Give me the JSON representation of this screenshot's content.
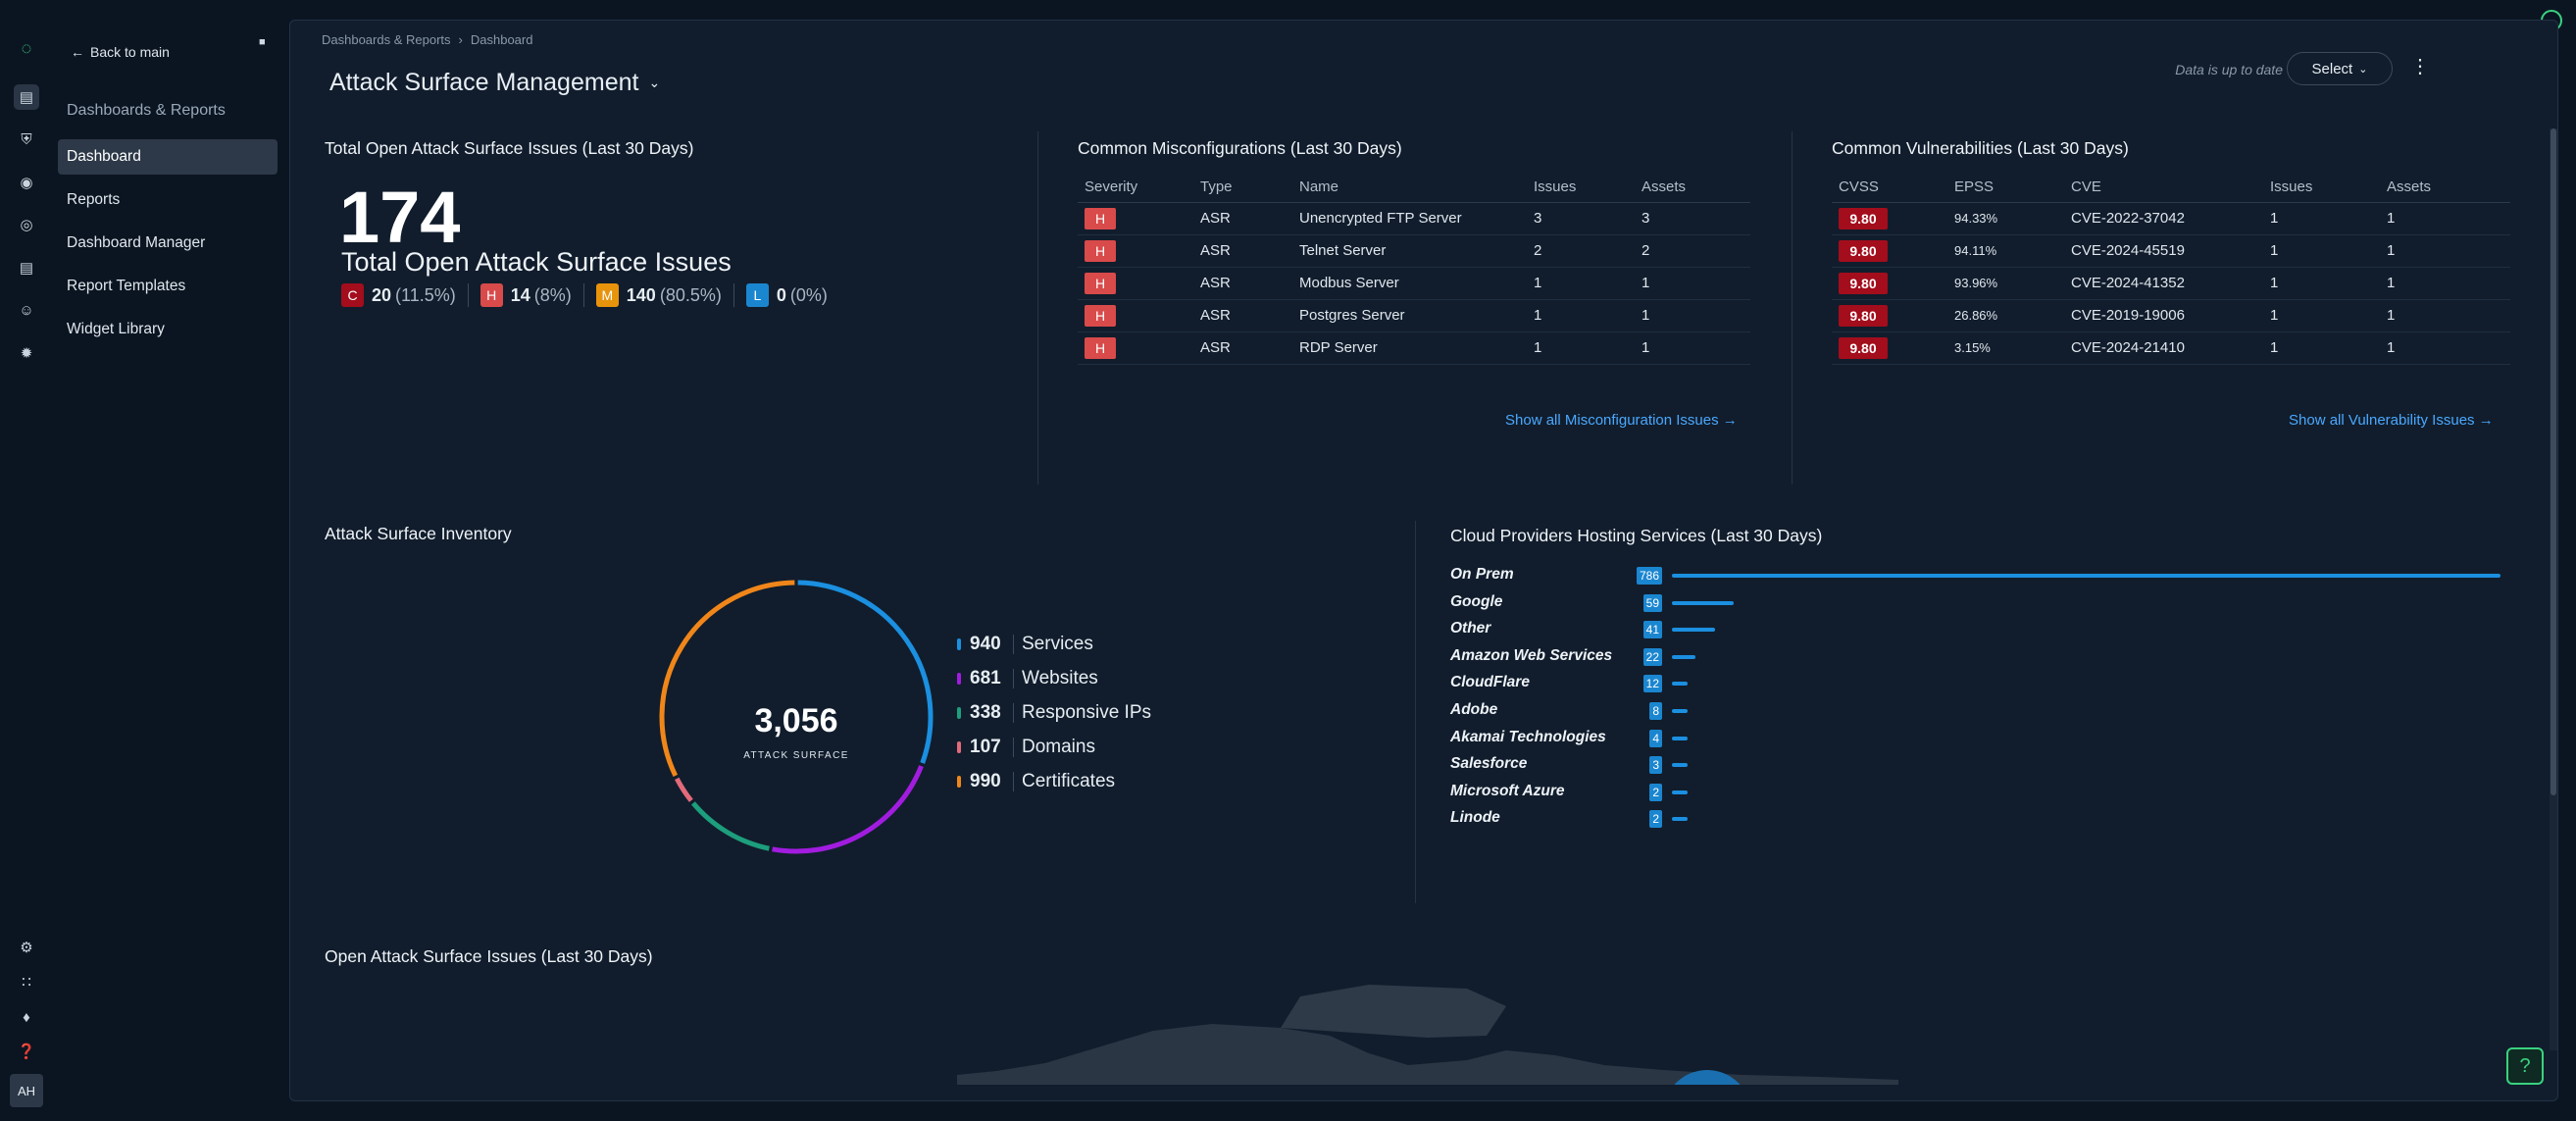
{
  "sidebar": {
    "back_label": "Back to main",
    "section_label": "Dashboards & Reports",
    "items": [
      {
        "label": "Dashboard"
      },
      {
        "label": "Reports"
      },
      {
        "label": "Dashboard Manager"
      },
      {
        "label": "Report Templates"
      },
      {
        "label": "Widget Library"
      }
    ],
    "avatar": "AH"
  },
  "header": {
    "breadcrumb": [
      "Dashboards & Reports",
      "Dashboard"
    ],
    "title": "Attack Surface Management",
    "status": "Data is up to date",
    "select_label": "Select"
  },
  "total_issues": {
    "title": "Total Open Attack Surface Issues (Last 30 Days)",
    "count": "174",
    "subtitle": "Total Open Attack Surface Issues",
    "severities": [
      {
        "letter": "C",
        "count": "20",
        "pct": "(11.5%)",
        "color": "#a30d1c"
      },
      {
        "letter": "H",
        "count": "14",
        "pct": "(8%)",
        "color": "#d94a4a"
      },
      {
        "letter": "M",
        "count": "140",
        "pct": "(80.5%)",
        "color": "#e8930c"
      },
      {
        "letter": "L",
        "count": "0",
        "pct": "(0%)",
        "color": "#1b86d0"
      }
    ]
  },
  "misconfig": {
    "title": "Common Misconfigurations (Last 30 Days)",
    "headers": [
      "Severity",
      "Type",
      "Name",
      "Issues",
      "Assets"
    ],
    "rows": [
      {
        "sev": "H",
        "type": "ASR",
        "name": "Unencrypted FTP Server",
        "issues": "3",
        "assets": "3"
      },
      {
        "sev": "H",
        "type": "ASR",
        "name": "Telnet Server",
        "issues": "2",
        "assets": "2"
      },
      {
        "sev": "H",
        "type": "ASR",
        "name": "Modbus Server",
        "issues": "1",
        "assets": "1"
      },
      {
        "sev": "H",
        "type": "ASR",
        "name": "Postgres Server",
        "issues": "1",
        "assets": "1"
      },
      {
        "sev": "H",
        "type": "ASR",
        "name": "RDP Server",
        "issues": "1",
        "assets": "1"
      }
    ],
    "link": "Show all Misconfiguration Issues →"
  },
  "vulns": {
    "title": "Common Vulnerabilities (Last 30 Days)",
    "headers": [
      "CVSS",
      "EPSS",
      "CVE",
      "Issues",
      "Assets"
    ],
    "rows": [
      {
        "cvss": "9.80",
        "epss": "94.33%",
        "cve": "CVE-2022-37042",
        "issues": "1",
        "assets": "1"
      },
      {
        "cvss": "9.80",
        "epss": "94.11%",
        "cve": "CVE-2024-45519",
        "issues": "1",
        "assets": "1"
      },
      {
        "cvss": "9.80",
        "epss": "93.96%",
        "cve": "CVE-2024-41352",
        "issues": "1",
        "assets": "1"
      },
      {
        "cvss": "9.80",
        "epss": "26.86%",
        "cve": "CVE-2019-19006",
        "issues": "1",
        "assets": "1"
      },
      {
        "cvss": "9.80",
        "epss": "3.15%",
        "cve": "CVE-2024-21410",
        "issues": "1",
        "assets": "1"
      }
    ],
    "link": "Show all Vulnerability Issues →"
  },
  "inventory": {
    "title": "Attack Surface Inventory",
    "total": "3,056",
    "total_label": "ATTACK SURFACE",
    "items": [
      {
        "count": "940",
        "label": "Services",
        "value": 940,
        "color": "#1b8fe0"
      },
      {
        "count": "681",
        "label": "Websites",
        "value": 681,
        "color": "#a21ce0"
      },
      {
        "count": "338",
        "label": "Responsive IPs",
        "value": 338,
        "color": "#1d9e7c"
      },
      {
        "count": "107",
        "label": "Domains",
        "value": 107,
        "color": "#e26a7a"
      },
      {
        "count": "990",
        "label": "Certificates",
        "value": 990,
        "color": "#f0861a"
      }
    ]
  },
  "cloud": {
    "title": "Cloud Providers Hosting Services (Last 30 Days)",
    "providers": [
      {
        "name": "On Prem",
        "value": 786,
        "label": "786"
      },
      {
        "name": "Google",
        "value": 59,
        "label": "59"
      },
      {
        "name": "Other",
        "value": 41,
        "label": "41"
      },
      {
        "name": "Amazon Web Services",
        "value": 22,
        "label": "22"
      },
      {
        "name": "CloudFlare",
        "value": 12,
        "label": "12"
      },
      {
        "name": "Adobe",
        "value": 8,
        "label": "8"
      },
      {
        "name": "Akamai Technologies",
        "value": 4,
        "label": "4"
      },
      {
        "name": "Salesforce",
        "value": 3,
        "label": "3"
      },
      {
        "name": "Microsoft Azure",
        "value": 2,
        "label": "2"
      },
      {
        "name": "Linode",
        "value": 2,
        "label": "2"
      }
    ]
  },
  "open_issues": {
    "title": "Open Attack Surface Issues (Last 30 Days)"
  },
  "help_label": "?"
}
